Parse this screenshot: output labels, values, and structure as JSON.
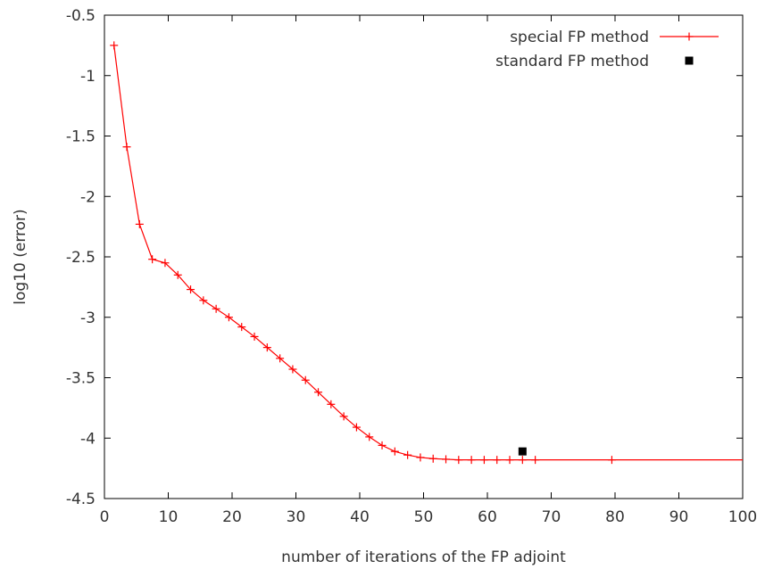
{
  "chart_data": {
    "type": "line",
    "xlabel": "number of iterations of the FP adjoint",
    "ylabel": "log10 (error)",
    "xlim": [
      0,
      100
    ],
    "ylim": [
      -4.5,
      -0.5
    ],
    "xticks": [
      0,
      10,
      20,
      30,
      40,
      50,
      60,
      70,
      80,
      90,
      100
    ],
    "yticks": [
      -0.5,
      -1,
      -1.5,
      -2,
      -2.5,
      -3,
      -3.5,
      -4,
      -4.5
    ],
    "xtick_labels": [
      "0",
      "10",
      "20",
      "30",
      "40",
      "50",
      "60",
      "70",
      "80",
      "90",
      "100"
    ],
    "ytick_labels": [
      "-0.5",
      "-1",
      "-1.5",
      "-2",
      "-2.5",
      "-3",
      "-3.5",
      "-4",
      "-4.5"
    ],
    "grid": false,
    "legend_position": "top-right",
    "series": [
      {
        "name": "special FP method",
        "color": "#ff0000",
        "marker": "plus",
        "line": true,
        "points": [
          [
            1.5,
            -0.75
          ],
          [
            3.5,
            -1.59
          ],
          [
            5.5,
            -2.23
          ],
          [
            7.5,
            -2.52
          ],
          [
            9.5,
            -2.55
          ],
          [
            11.5,
            -2.65
          ],
          [
            13.5,
            -2.77
          ],
          [
            15.5,
            -2.86
          ],
          [
            17.5,
            -2.93
          ],
          [
            19.5,
            -3.0
          ],
          [
            21.5,
            -3.08
          ],
          [
            23.5,
            -3.16
          ],
          [
            25.5,
            -3.25
          ],
          [
            27.5,
            -3.34
          ],
          [
            29.5,
            -3.43
          ],
          [
            31.5,
            -3.52
          ],
          [
            33.5,
            -3.62
          ],
          [
            35.5,
            -3.72
          ],
          [
            37.5,
            -3.82
          ],
          [
            39.5,
            -3.91
          ],
          [
            41.5,
            -3.99
          ],
          [
            43.5,
            -4.06
          ],
          [
            45.5,
            -4.11
          ],
          [
            47.5,
            -4.14
          ],
          [
            49.5,
            -4.16
          ],
          [
            51.5,
            -4.17
          ],
          [
            53.5,
            -4.175
          ],
          [
            55.5,
            -4.18
          ],
          [
            57.5,
            -4.18
          ],
          [
            59.5,
            -4.18
          ],
          [
            61.5,
            -4.18
          ],
          [
            63.5,
            -4.18
          ],
          [
            65.5,
            -4.18
          ],
          [
            67.5,
            -4.18
          ],
          [
            79.5,
            -4.18
          ],
          [
            100,
            -4.18
          ]
        ],
        "marker_count": 35
      },
      {
        "name": "standard FP method",
        "color": "#000000",
        "marker": "square",
        "line": false,
        "points": [
          [
            65.5,
            -4.11
          ]
        ]
      }
    ]
  }
}
